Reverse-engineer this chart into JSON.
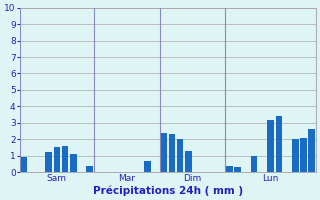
{
  "bar_values": [
    0.9,
    0,
    0,
    1.2,
    1.5,
    1.6,
    1.1,
    0,
    0.4,
    0,
    0,
    0,
    0,
    0,
    0,
    0.7,
    0,
    2.4,
    2.3,
    2.0,
    1.3,
    0,
    0,
    0,
    0,
    0.4,
    0.3,
    0,
    1.0,
    0,
    3.2,
    3.4,
    0,
    2.0,
    2.1,
    2.6
  ],
  "bar_color": "#1a6bc4",
  "day_labels": [
    "Sam",
    "Mar",
    "Dim",
    "Lun"
  ],
  "day_sep_positions": [
    -0.5,
    8.5,
    16.5,
    24.5,
    35.5
  ],
  "xlabel": "Précipitations 24h ( mm )",
  "ylim": [
    0,
    10
  ],
  "yticks": [
    0,
    1,
    2,
    3,
    4,
    5,
    6,
    7,
    8,
    9,
    10
  ],
  "background_color": "#dff5f5",
  "grid_color": "#aaaaaa",
  "xlabel_color": "#2222bb",
  "tick_color": "#2222bb",
  "day_line_color": "#8888bb",
  "figwidth": 3.2,
  "figheight": 2.0,
  "dpi": 100
}
